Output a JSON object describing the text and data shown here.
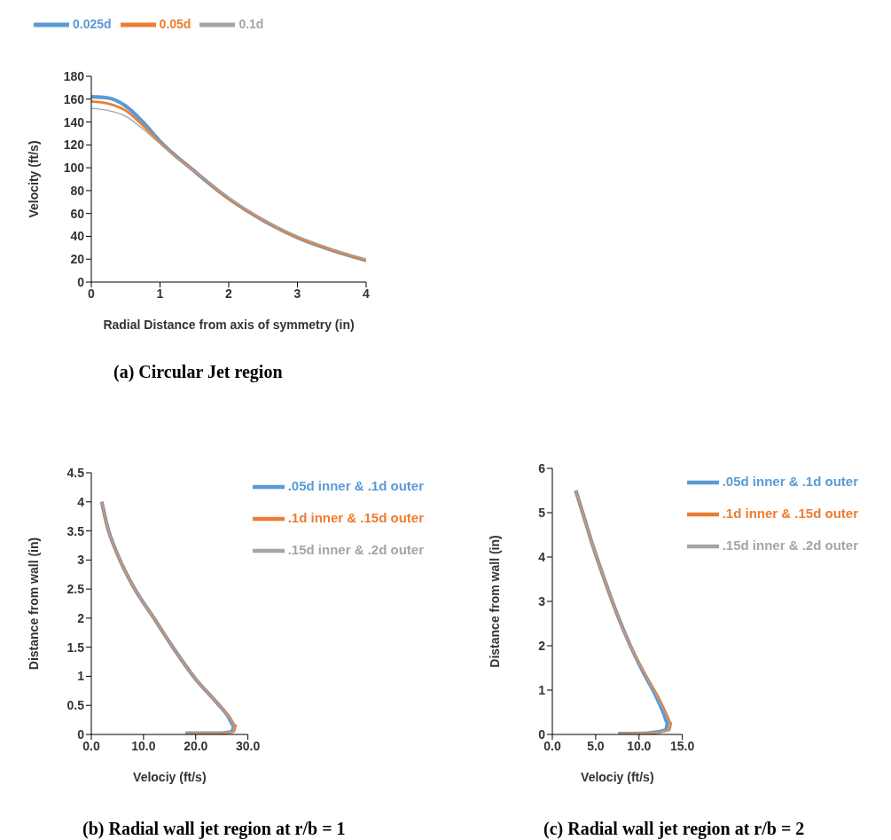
{
  "chart_data": [
    {
      "type": "line",
      "title": "(a) Circular Jet region",
      "xlabel": "Radial Distance from axis of symmetry (in)",
      "ylabel": "Velocity (ft/s)",
      "xlim": [
        0,
        4
      ],
      "xticks": [
        0,
        1,
        2,
        3,
        4
      ],
      "ylim": [
        0,
        180
      ],
      "yticks": [
        0,
        20,
        40,
        60,
        80,
        100,
        120,
        140,
        160,
        180
      ],
      "legend": "top",
      "grid": false,
      "marker": "none",
      "series": [
        {
          "name": "0.025d",
          "color": "#5b9bd5",
          "x": [
            0,
            0.25,
            0.5,
            0.75,
            1,
            1.5,
            2,
            2.5,
            3,
            3.5,
            4
          ],
          "values": [
            162,
            161,
            154,
            140,
            123,
            97,
            73,
            54,
            39,
            28,
            19
          ]
        },
        {
          "name": "0.05d",
          "color": "#ed7d31",
          "x": [
            0,
            0.25,
            0.5,
            0.75,
            1,
            1.5,
            2,
            2.5,
            3,
            3.5,
            4
          ],
          "values": [
            158,
            156,
            150,
            137,
            122,
            97,
            73,
            54,
            39,
            28,
            19
          ]
        },
        {
          "name": "0.1d",
          "color": "#a5a5a5",
          "x": [
            0,
            0.25,
            0.5,
            0.75,
            1,
            1.5,
            2,
            2.5,
            3,
            3.5,
            4
          ],
          "values": [
            152,
            150,
            145,
            134,
            121,
            97,
            74,
            55,
            40,
            29,
            20
          ]
        }
      ]
    },
    {
      "type": "line",
      "title": "(b) Radial wall jet region at r/b = 1",
      "xlabel": "Velociy (ft/s)",
      "ylabel": "Distance from wall (in)",
      "xlim": [
        0,
        30
      ],
      "xticks": [
        {
          "value": 0,
          "label": "0.0"
        },
        {
          "value": 10,
          "label": "10.0"
        },
        {
          "value": 20,
          "label": "20.0"
        },
        {
          "value": 30,
          "label": "30.0"
        }
      ],
      "ylim": [
        0,
        4.5
      ],
      "yticks": [
        0,
        0.5,
        1,
        1.5,
        2,
        2.5,
        3,
        3.5,
        4,
        4.5
      ],
      "legend": "top right",
      "grid": false,
      "marker": "none",
      "series": [
        {
          "name": ".05d inner & .1d outer",
          "color": "#5b9bd5",
          "x": [
            2,
            3,
            5,
            8,
            12,
            16,
            20,
            24,
            26.3,
            27.3,
            27,
            24,
            18
          ],
          "values": [
            4,
            3.6,
            3.1,
            2.55,
            2,
            1.45,
            0.95,
            0.55,
            0.3,
            0.15,
            0.05,
            0.02,
            0.02
          ]
        },
        {
          "name": ".1d inner & .15d outer",
          "color": "#ed7d31",
          "x": [
            2,
            3,
            5,
            8,
            12,
            16,
            20,
            24,
            26.5,
            27.7,
            27.3,
            24,
            18
          ],
          "values": [
            4,
            3.6,
            3.1,
            2.55,
            2,
            1.45,
            0.95,
            0.55,
            0.3,
            0.15,
            0.05,
            0.02,
            0.02
          ]
        },
        {
          "name": ".15d inner & .2d outer",
          "color": "#a5a5a5",
          "x": [
            2,
            3,
            5,
            8,
            12,
            16,
            20,
            24,
            26.4,
            27.5,
            27.1,
            24,
            18
          ],
          "values": [
            4,
            3.6,
            3.1,
            2.55,
            2,
            1.45,
            0.95,
            0.55,
            0.3,
            0.15,
            0.05,
            0.02,
            0.02
          ]
        }
      ]
    },
    {
      "type": "line",
      "title": "(c) Radial wall jet region at r/b = 2",
      "xlabel": "Velociy (ft/s)",
      "ylabel": "Distance from wall (in)",
      "xlim": [
        0,
        15
      ],
      "xticks": [
        {
          "value": 0,
          "label": "0.0"
        },
        {
          "value": 5,
          "label": "5.0"
        },
        {
          "value": 10,
          "label": "10.0"
        },
        {
          "value": 15,
          "label": "15.0"
        }
      ],
      "ylim": [
        0,
        6
      ],
      "yticks": [
        0,
        1,
        2,
        3,
        4,
        5,
        6
      ],
      "legend": "top right",
      "grid": false,
      "marker": "none",
      "series": [
        {
          "name": ".05d inner & .1d outer",
          "color": "#5b9bd5",
          "x": [
            2.7,
            3.5,
            4.6,
            6,
            7.5,
            9,
            10.5,
            12,
            12.9,
            13.3,
            13.1,
            11,
            7.6
          ],
          "values": [
            5.5,
            5,
            4.3,
            3.5,
            2.7,
            2,
            1.4,
            0.85,
            0.45,
            0.25,
            0.1,
            0.03,
            0.02
          ]
        },
        {
          "name": ".1d inner & .15d outer",
          "color": "#ed7d31",
          "x": [
            2.7,
            3.5,
            4.6,
            6,
            7.5,
            9,
            10.6,
            12.2,
            13.2,
            13.7,
            13.5,
            11,
            7.6
          ],
          "values": [
            5.5,
            5,
            4.3,
            3.5,
            2.7,
            2,
            1.4,
            0.85,
            0.45,
            0.25,
            0.1,
            0.03,
            0.02
          ]
        },
        {
          "name": ".15d inner & .2d outer",
          "color": "#a5a5a5",
          "x": [
            2.7,
            3.5,
            4.6,
            6,
            7.5,
            9,
            10.55,
            12.1,
            13.1,
            13.6,
            13.4,
            11,
            7.6
          ],
          "values": [
            5.5,
            5,
            4.3,
            3.5,
            2.7,
            2,
            1.4,
            0.85,
            0.45,
            0.25,
            0.1,
            0.03,
            0.02
          ]
        }
      ]
    }
  ]
}
